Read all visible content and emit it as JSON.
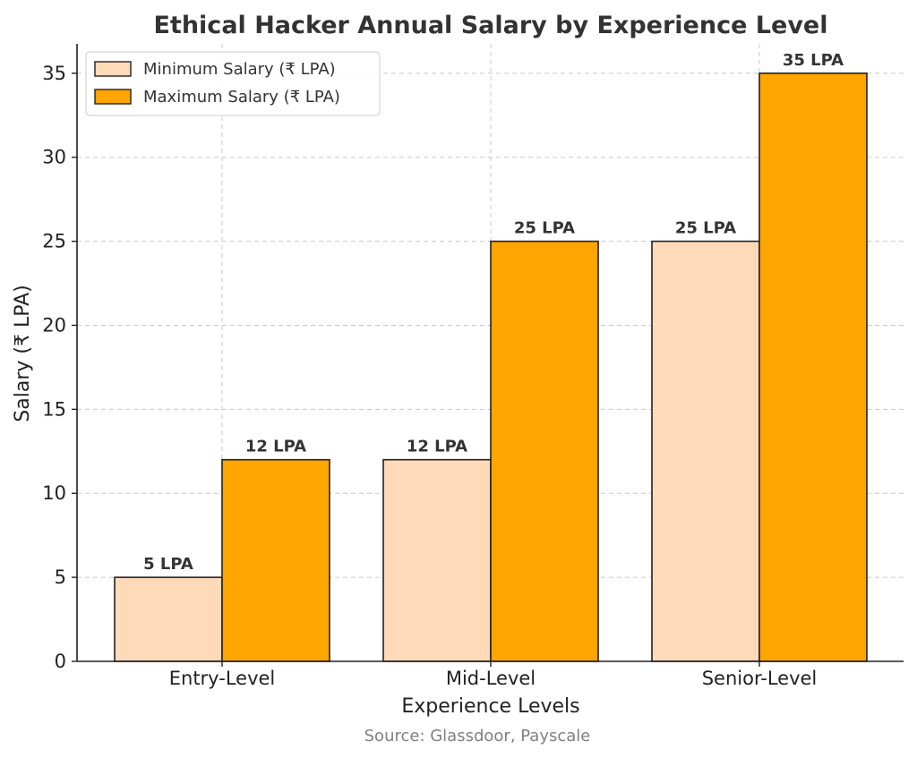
{
  "chart_data": {
    "type": "bar",
    "title": "Ethical Hacker Annual Salary by Experience Level",
    "xlabel": "Experience Levels",
    "ylabel": "Salary (₹ LPA)",
    "source": "Source: Glassdoor, Payscale",
    "categories": [
      "Entry-Level",
      "Mid-Level",
      "Senior-Level"
    ],
    "series": [
      {
        "name": "Minimum Salary (₹ LPA)",
        "values": [
          5,
          12,
          25
        ],
        "labels": [
          "5 LPA",
          "12 LPA",
          "25 LPA"
        ],
        "color": "#FFDAB9"
      },
      {
        "name": "Maximum Salary (₹ LPA)",
        "values": [
          12,
          25,
          35
        ],
        "labels": [
          "12 LPA",
          "25 LPA",
          "35 LPA"
        ],
        "color": "#FFA500"
      }
    ],
    "ylim": [
      0,
      36.75
    ],
    "yticks": [
      0,
      5,
      10,
      15,
      20,
      25,
      30,
      35
    ],
    "grid": true,
    "legend_position": "top-left"
  }
}
